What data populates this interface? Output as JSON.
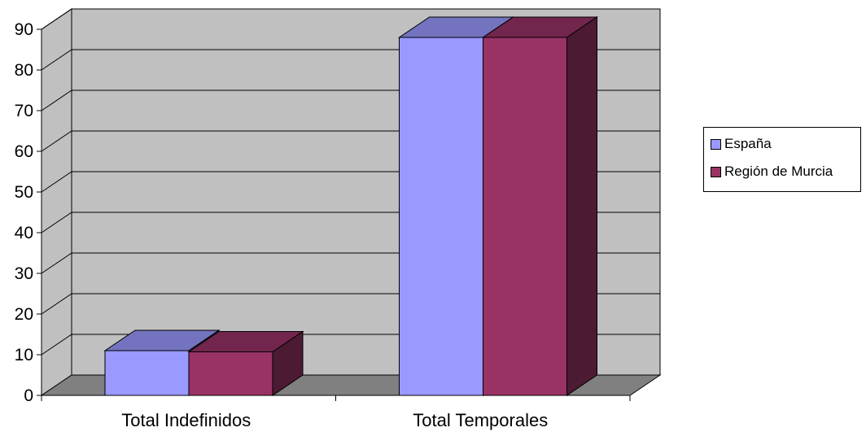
{
  "chart_data": {
    "type": "bar",
    "title": "",
    "xlabel": "",
    "ylabel": "",
    "categories": [
      "Total Indefinidos",
      "Total Temporales"
    ],
    "series": [
      {
        "name": "España",
        "values": [
          11,
          88
        ],
        "color": "#9999ff"
      },
      {
        "name": "Región de Murcia",
        "values": [
          10.7,
          88
        ],
        "color": "#993366"
      }
    ],
    "y_ticks": [
      "0",
      "10",
      "20",
      "30",
      "40",
      "50",
      "60",
      "70",
      "80",
      "90"
    ],
    "ylim": [
      0,
      90
    ],
    "grid": true,
    "legend_position": "right",
    "style": "3d-clustered-column",
    "wall_color": "#c0c0c0",
    "floor_color": "#808080"
  }
}
